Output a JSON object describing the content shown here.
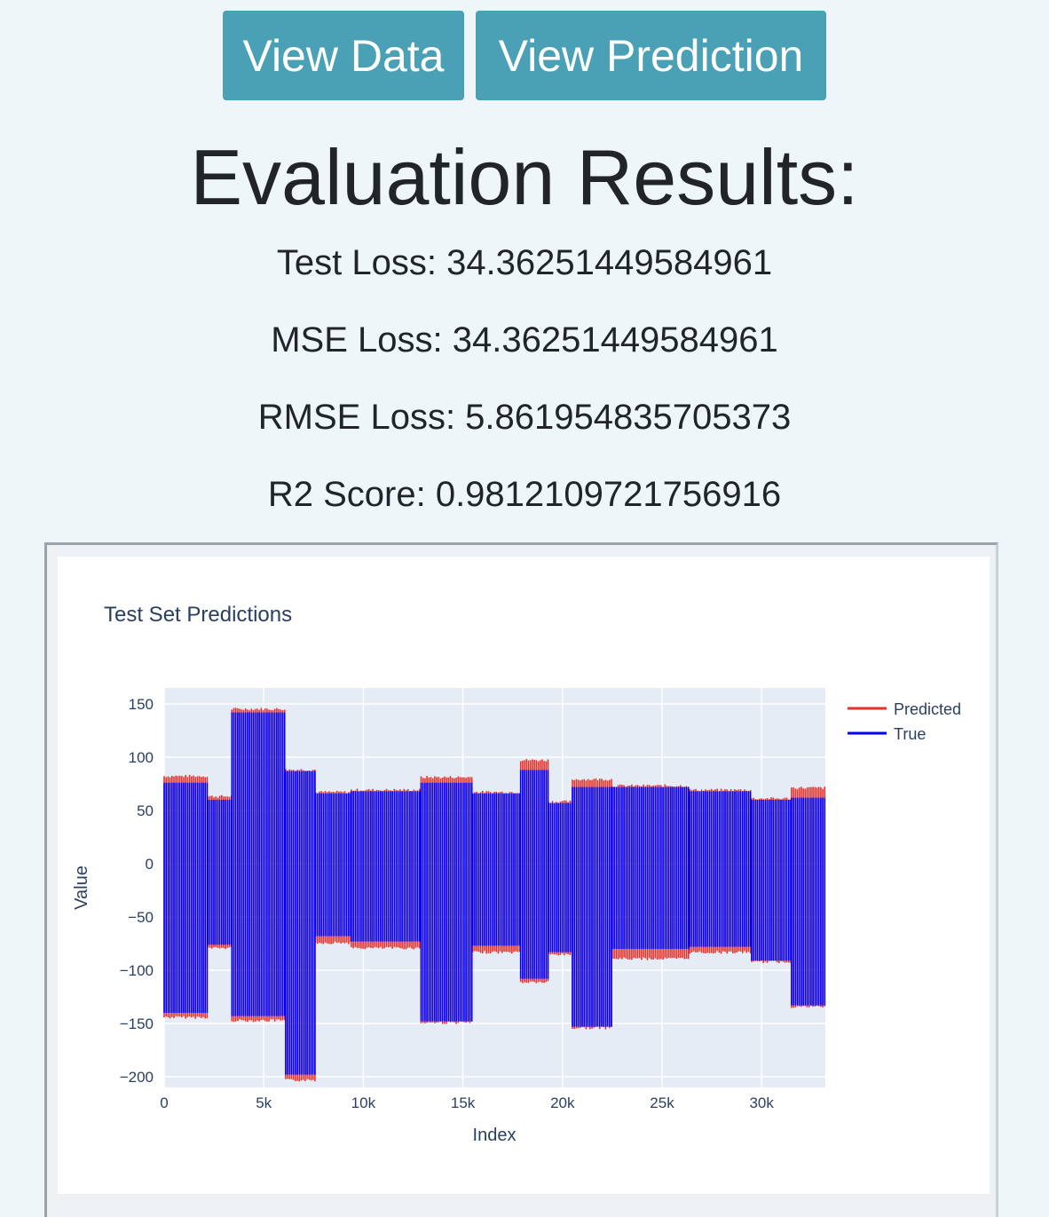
{
  "toolbar": {
    "view_data_label": "View Data",
    "view_prediction_label": "View Prediction"
  },
  "page": {
    "title": "Evaluation Results:"
  },
  "metrics": [
    {
      "text": "Test Loss: 34.36251449584961"
    },
    {
      "text": "MSE Loss: 34.36251449584961"
    },
    {
      "text": "RMSE Loss: 5.861954835705373"
    },
    {
      "text": "R2 Score: 0.9812109721756916"
    }
  ],
  "colors": {
    "button_bg": "#4aa0b5",
    "predicted": "#e8312a",
    "true": "#0000ff",
    "plot_bg": "#e5ecf6"
  },
  "chart_data": {
    "type": "line",
    "title": "Test Set Predictions",
    "xlabel": "Index",
    "ylabel": "Value",
    "xlim": [
      0,
      33200
    ],
    "ylim": [
      -210,
      165
    ],
    "xticks": [
      0,
      5000,
      10000,
      15000,
      20000,
      25000,
      30000
    ],
    "xtick_labels": [
      "0",
      "5k",
      "10k",
      "15k",
      "20k",
      "25k",
      "30k"
    ],
    "yticks": [
      150,
      100,
      50,
      0,
      -50,
      -100,
      -150,
      -200
    ],
    "ytick_labels": [
      "150",
      "100",
      "50",
      "0",
      "−50",
      "−100",
      "−150",
      "−200"
    ],
    "grid": true,
    "legend_position": "top-right",
    "series": [
      {
        "name": "Predicted",
        "color": "#e8312a",
        "segments": [
          {
            "x0": 0,
            "x1": 2200,
            "high": 81,
            "low": -143
          },
          {
            "x0": 2200,
            "x1": 3400,
            "high": 62,
            "low": -78
          },
          {
            "x0": 3400,
            "x1": 6100,
            "high": 144,
            "low": -146
          },
          {
            "x0": 6100,
            "x1": 7600,
            "high": 87,
            "low": -202
          },
          {
            "x0": 7600,
            "x1": 9400,
            "high": 66,
            "low": -73
          },
          {
            "x0": 9400,
            "x1": 12900,
            "high": 68,
            "low": -78
          },
          {
            "x0": 12900,
            "x1": 15500,
            "high": 80,
            "low": -148
          },
          {
            "x0": 15500,
            "x1": 17900,
            "high": 66,
            "low": -82
          },
          {
            "x0": 17900,
            "x1": 19300,
            "high": 96,
            "low": -110
          },
          {
            "x0": 19300,
            "x1": 20500,
            "high": 57,
            "low": -84
          },
          {
            "x0": 20500,
            "x1": 22500,
            "high": 78,
            "low": -153
          },
          {
            "x0": 22500,
            "x1": 26400,
            "high": 72,
            "low": -88
          },
          {
            "x0": 26400,
            "x1": 29500,
            "high": 68,
            "low": -82
          },
          {
            "x0": 29500,
            "x1": 31500,
            "high": 60,
            "low": -91
          },
          {
            "x0": 31500,
            "x1": 33200,
            "high": 70,
            "low": -133
          }
        ]
      },
      {
        "name": "True",
        "color": "#0000ff",
        "segments": [
          {
            "x0": 0,
            "x1": 2200,
            "high": 76,
            "low": -140
          },
          {
            "x0": 2200,
            "x1": 3400,
            "high": 60,
            "low": -76
          },
          {
            "x0": 3400,
            "x1": 6100,
            "high": 142,
            "low": -143
          },
          {
            "x0": 6100,
            "x1": 7600,
            "high": 87,
            "low": -198
          },
          {
            "x0": 7600,
            "x1": 9400,
            "high": 66,
            "low": -68
          },
          {
            "x0": 9400,
            "x1": 12900,
            "high": 68,
            "low": -73
          },
          {
            "x0": 12900,
            "x1": 15500,
            "high": 76,
            "low": -148
          },
          {
            "x0": 15500,
            "x1": 17900,
            "high": 66,
            "low": -77
          },
          {
            "x0": 17900,
            "x1": 19300,
            "high": 88,
            "low": -108
          },
          {
            "x0": 19300,
            "x1": 20500,
            "high": 57,
            "low": -83
          },
          {
            "x0": 20500,
            "x1": 22500,
            "high": 72,
            "low": -153
          },
          {
            "x0": 22500,
            "x1": 26400,
            "high": 72,
            "low": -80
          },
          {
            "x0": 26400,
            "x1": 29500,
            "high": 68,
            "low": -78
          },
          {
            "x0": 29500,
            "x1": 31500,
            "high": 60,
            "low": -91
          },
          {
            "x0": 31500,
            "x1": 33200,
            "high": 62,
            "low": -133
          }
        ]
      }
    ]
  }
}
